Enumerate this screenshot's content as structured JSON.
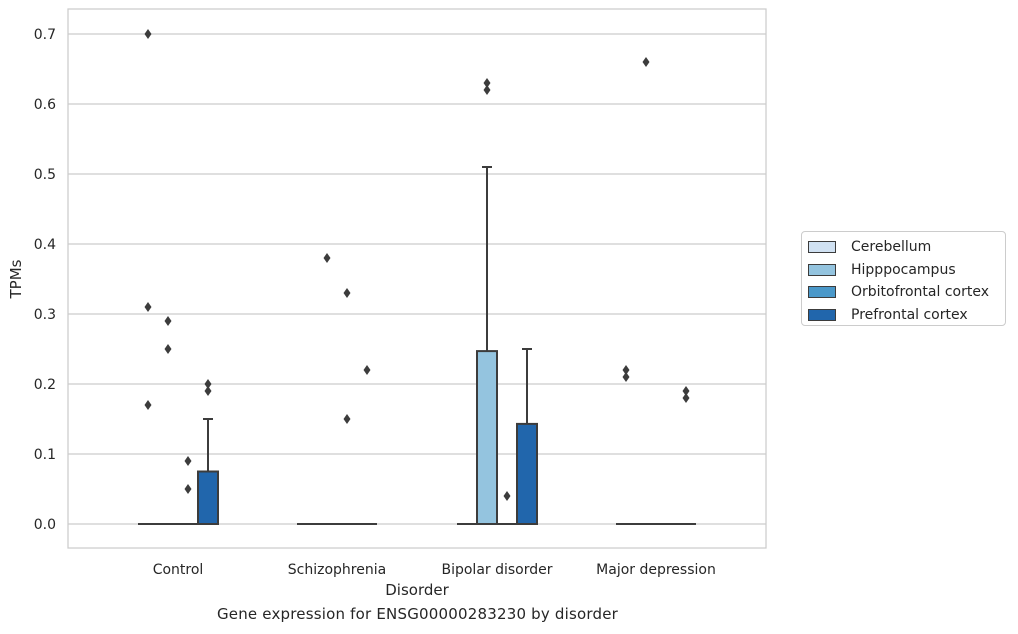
{
  "caption": "Gene expression for ENSG00000283230 by disorder",
  "chart_data": {
    "type": "box",
    "xlabel": "Disorder",
    "ylabel": "TPMs",
    "ylim": [
      -0.035,
      0.735
    ],
    "yticks": [
      0.0,
      0.1,
      0.2,
      0.3,
      0.4,
      0.5,
      0.6,
      0.7
    ],
    "ytick_labels": [
      "0.0",
      "0.1",
      "0.2",
      "0.3",
      "0.4",
      "0.5",
      "0.6",
      "0.7"
    ],
    "grid": "horizontal",
    "legend_position": "right",
    "categories": [
      "Control",
      "Schizophrenia",
      "Bipolar disorder",
      "Major depression"
    ],
    "series": [
      {
        "name": "Cerebellum",
        "color": "#d0e1f2",
        "boxes": [
          {
            "q1": 0,
            "median": 0,
            "q3": 0,
            "whisker_low": 0,
            "whisker_high": 0,
            "outliers": [
              0.7,
              0.31,
              0.17
            ]
          },
          {
            "q1": 0,
            "median": 0,
            "q3": 0,
            "whisker_low": 0,
            "whisker_high": 0,
            "outliers": []
          },
          {
            "q1": 0,
            "median": 0,
            "q3": 0,
            "whisker_low": 0,
            "whisker_high": 0,
            "outliers": []
          },
          {
            "q1": 0,
            "median": 0,
            "q3": 0,
            "whisker_low": 0,
            "whisker_high": 0,
            "outliers": [
              0.22,
              0.21
            ]
          }
        ]
      },
      {
        "name": "Hipppocampus",
        "color": "#94c4df",
        "boxes": [
          {
            "q1": 0,
            "median": 0,
            "q3": 0,
            "whisker_low": 0,
            "whisker_high": 0,
            "outliers": [
              0.29,
              0.25
            ]
          },
          {
            "q1": 0,
            "median": 0,
            "q3": 0,
            "whisker_low": 0,
            "whisker_high": 0,
            "outliers": [
              0.38
            ]
          },
          {
            "q1": 0,
            "median": 0,
            "q3": 0.247,
            "whisker_low": 0,
            "whisker_high": 0.51,
            "outliers": [
              0.63,
              0.62
            ]
          },
          {
            "q1": 0,
            "median": 0,
            "q3": 0,
            "whisker_low": 0,
            "whisker_high": 0,
            "outliers": [
              0.66
            ]
          }
        ]
      },
      {
        "name": "Orbitofrontal cortex",
        "color": "#4a98c9",
        "boxes": [
          {
            "q1": 0,
            "median": 0,
            "q3": 0,
            "whisker_low": 0,
            "whisker_high": 0,
            "outliers": [
              0.09,
              0.05
            ]
          },
          {
            "q1": 0,
            "median": 0,
            "q3": 0,
            "whisker_low": 0,
            "whisker_high": 0,
            "outliers": [
              0.33,
              0.15
            ]
          },
          {
            "q1": 0,
            "median": 0,
            "q3": 0,
            "whisker_low": 0,
            "whisker_high": 0,
            "outliers": [
              0.04
            ]
          },
          {
            "q1": 0,
            "median": 0,
            "q3": 0,
            "whisker_low": 0,
            "whisker_high": 0,
            "outliers": []
          }
        ]
      },
      {
        "name": "Prefrontal cortex",
        "color": "#2166ac",
        "boxes": [
          {
            "q1": 0,
            "median": 0,
            "q3": 0.075,
            "whisker_low": 0,
            "whisker_high": 0.15,
            "outliers": [
              0.2,
              0.19
            ]
          },
          {
            "q1": 0,
            "median": 0,
            "q3": 0,
            "whisker_low": 0,
            "whisker_high": 0,
            "outliers": [
              0.22
            ]
          },
          {
            "q1": 0,
            "median": 0,
            "q3": 0.143,
            "whisker_low": 0,
            "whisker_high": 0.25,
            "outliers": []
          },
          {
            "q1": 0,
            "median": 0,
            "q3": 0,
            "whisker_low": 0,
            "whisker_high": 0,
            "outliers": [
              0.19,
              0.18
            ]
          }
        ]
      }
    ]
  }
}
